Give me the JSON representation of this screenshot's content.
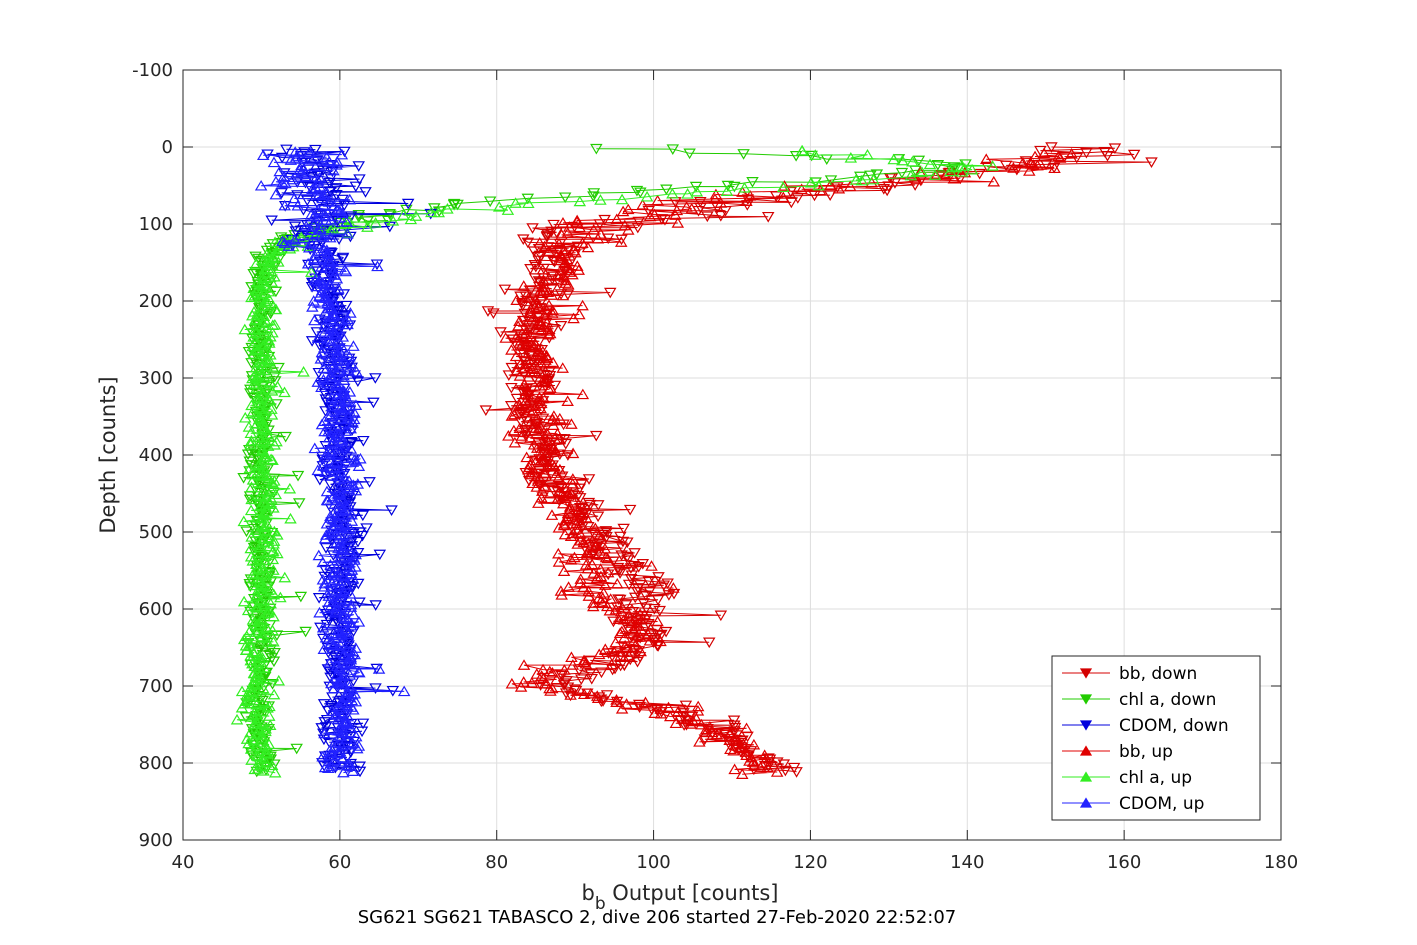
{
  "chart_data": {
    "type": "scatter",
    "title": "",
    "subtitle": "SG621 SG621 TABASCO 2, dive 206 started 27-Feb-2020 22:52:07",
    "xlabel_main": "b",
    "xlabel_sub": "b",
    "xlabel_rest": " Output [counts]",
    "ylabel": "Depth [counts]",
    "xlim": [
      40,
      180
    ],
    "ylim": [
      -100,
      900
    ],
    "y_reversed": true,
    "xticks": [
      40,
      60,
      80,
      100,
      120,
      140,
      160,
      180
    ],
    "yticks": [
      -100,
      0,
      100,
      200,
      300,
      400,
      500,
      600,
      700,
      800,
      900
    ],
    "grid": true,
    "legend_position": "bottom-right",
    "series": [
      {
        "name": "bb, down",
        "color": "#d40000",
        "marker": "triangle-down",
        "line": true,
        "profile": [
          [
            0,
            150
          ],
          [
            10,
            158
          ],
          [
            25,
            145
          ],
          [
            50,
            130
          ],
          [
            70,
            112
          ],
          [
            90,
            100
          ],
          [
            110,
            90
          ],
          [
            130,
            87
          ],
          [
            150,
            86
          ],
          [
            170,
            85
          ],
          [
            200,
            85
          ],
          [
            250,
            84
          ],
          [
            300,
            84
          ],
          [
            350,
            85
          ],
          [
            400,
            86
          ],
          [
            450,
            89
          ],
          [
            480,
            92
          ],
          [
            500,
            93
          ],
          [
            540,
            96
          ],
          [
            570,
            100
          ],
          [
            600,
            97
          ],
          [
            620,
            99
          ],
          [
            640,
            99
          ],
          [
            660,
            96
          ],
          [
            680,
            92
          ],
          [
            700,
            87
          ],
          [
            720,
            95
          ],
          [
            740,
            105
          ],
          [
            760,
            108
          ],
          [
            780,
            112
          ],
          [
            800,
            116
          ],
          [
            812,
            117
          ]
        ],
        "spread": 3,
        "count": 420
      },
      {
        "name": "chl a, down",
        "color": "#22cc00",
        "marker": "triangle-down",
        "line": true,
        "profile": [
          [
            2,
            93
          ],
          [
            10,
            115
          ],
          [
            20,
            135
          ],
          [
            30,
            140
          ],
          [
            45,
            118
          ],
          [
            55,
            100
          ],
          [
            65,
            90
          ],
          [
            75,
            75
          ],
          [
            90,
            64
          ],
          [
            105,
            58
          ],
          [
            120,
            53
          ],
          [
            140,
            51
          ],
          [
            170,
            50
          ],
          [
            220,
            50
          ],
          [
            300,
            50
          ],
          [
            400,
            50
          ],
          [
            500,
            50
          ],
          [
            600,
            50
          ],
          [
            700,
            50
          ],
          [
            810,
            50
          ]
        ],
        "spread": 1.5,
        "count": 380
      },
      {
        "name": "CDOM, down",
        "color": "#0000dd",
        "marker": "triangle-down",
        "line": true,
        "profile": [
          [
            2,
            56
          ],
          [
            30,
            56
          ],
          [
            60,
            57
          ],
          [
            100,
            57
          ],
          [
            150,
            58
          ],
          [
            200,
            59
          ],
          [
            300,
            60
          ],
          [
            400,
            60
          ],
          [
            500,
            60
          ],
          [
            600,
            60
          ],
          [
            700,
            60
          ],
          [
            810,
            60
          ]
        ],
        "spread": 2,
        "count": 420
      },
      {
        "name": "bb, up",
        "color": "#e00000",
        "marker": "triangle-up",
        "line": true,
        "profile": [
          [
            812,
            114
          ],
          [
            790,
            112
          ],
          [
            760,
            108
          ],
          [
            740,
            104
          ],
          [
            720,
            96
          ],
          [
            700,
            85
          ],
          [
            680,
            86
          ],
          [
            660,
            95
          ],
          [
            640,
            98
          ],
          [
            620,
            97
          ],
          [
            600,
            95
          ],
          [
            580,
            92
          ],
          [
            550,
            92
          ],
          [
            500,
            90
          ],
          [
            450,
            88
          ],
          [
            400,
            86
          ],
          [
            350,
            85
          ],
          [
            300,
            85
          ],
          [
            250,
            85
          ],
          [
            200,
            86
          ],
          [
            150,
            88
          ],
          [
            110,
            92
          ],
          [
            90,
            98
          ],
          [
            70,
            108
          ],
          [
            50,
            125
          ],
          [
            35,
            140
          ],
          [
            20,
            150
          ],
          [
            8,
            154
          ]
        ],
        "spread": 3,
        "count": 420
      },
      {
        "name": "chl a, up",
        "color": "#33ee22",
        "marker": "triangle-up",
        "line": true,
        "profile": [
          [
            812,
            50
          ],
          [
            700,
            49
          ],
          [
            600,
            50
          ],
          [
            500,
            50
          ],
          [
            400,
            50
          ],
          [
            300,
            50
          ],
          [
            200,
            50
          ],
          [
            150,
            51
          ],
          [
            125,
            54
          ],
          [
            110,
            58
          ],
          [
            95,
            64
          ],
          [
            80,
            76
          ],
          [
            70,
            90
          ],
          [
            60,
            105
          ],
          [
            45,
            125
          ],
          [
            30,
            140
          ],
          [
            20,
            135
          ],
          [
            12,
            125
          ],
          [
            5,
            120
          ]
        ],
        "spread": 1.5,
        "count": 380
      },
      {
        "name": "CDOM, up",
        "color": "#2222ff",
        "marker": "triangle-up",
        "line": true,
        "profile": [
          [
            812,
            60
          ],
          [
            700,
            61
          ],
          [
            600,
            60
          ],
          [
            500,
            60
          ],
          [
            400,
            60
          ],
          [
            300,
            60
          ],
          [
            200,
            59
          ],
          [
            150,
            58
          ],
          [
            100,
            57
          ],
          [
            60,
            57
          ],
          [
            30,
            56
          ],
          [
            5,
            56
          ]
        ],
        "spread": 2,
        "count": 420
      }
    ]
  }
}
